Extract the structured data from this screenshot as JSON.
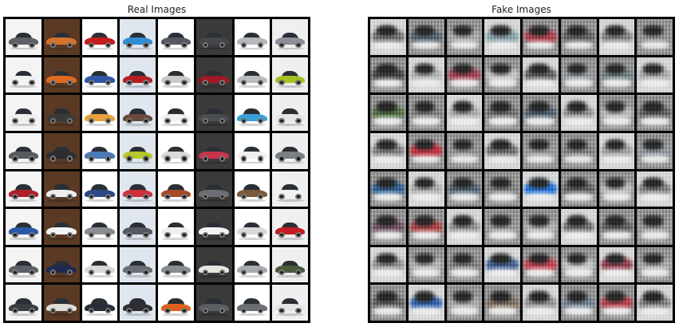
{
  "panels": [
    {
      "title": "Real Images",
      "rows": 8,
      "cols": 8,
      "background_colors": [
        "#f4f4f4",
        "#5a3a24",
        "#ffffff",
        "#dfe6ee",
        "#ffffff",
        "#3a3a3a",
        "#ffffff",
        "#efefef"
      ],
      "car_colors": [
        "#5c6066",
        "#d4742a",
        "#c41c1c",
        "#2e8fd6",
        "#55595f",
        "#44474c",
        "#b5b9bd",
        "#8c9096",
        "#f2f2f2",
        "#e06a20",
        "#2f56a8",
        "#b51f24",
        "#c9c9c9",
        "#a01825",
        "#b8bcc0",
        "#a6c21f",
        "#eeeeee",
        "#3a3a3a",
        "#e8a23a",
        "#6a4a3a",
        "#f0f0f0",
        "#4a4d52",
        "#3aa0d8",
        "#e5e5e5",
        "#565b62",
        "#2b2d31",
        "#4a78b8",
        "#b7c92a",
        "#d8d8d8",
        "#c8344a",
        "#f0f0f0",
        "#7a7f86",
        "#b01e28",
        "#eeeeee",
        "#2c4a86",
        "#d0303a",
        "#a84a28",
        "#6a6e74",
        "#7a5a3a",
        "#f2f2f2",
        "#2a58a8",
        "#f4f4f4",
        "#8a8e94",
        "#55595f",
        "#f0f0f0",
        "#f2f2f2",
        "#d8d8d8",
        "#c41c24",
        "#5c6066",
        "#1e2a52",
        "#d8d8d8",
        "#6a6e74",
        "#8a8e94",
        "#e8e4e0",
        "#a8aab0",
        "#4a5a3a",
        "#3a3d42",
        "#e0ddd8",
        "#2a2e3a",
        "#2c2e32",
        "#e0601a",
        "#5a5e64",
        "#6a6e74",
        "#e6e6e6"
      ]
    },
    {
      "title": "Fake Images",
      "rows": 8,
      "cols": 8,
      "tile_colors": [
        "#7a7a7a",
        "#5b6b78",
        "#b0b0b0",
        "#8fa8b0",
        "#b24a55",
        "#6a6a6a",
        "#8a8a8a",
        "#9a9a9a",
        "#4a4a4a",
        "#b7b7b7",
        "#a8475a",
        "#c8c8c8",
        "#6a6a6a",
        "#9aa0a6",
        "#7a8a8a",
        "#b0b0b0",
        "#5a7a4a",
        "#8a8a8a",
        "#b0b0b0",
        "#7a7a7a",
        "#5a6a7a",
        "#9a9a9a",
        "#c0c0c0",
        "#6a6a6a",
        "#8a8a8a",
        "#c23a48",
        "#9a9a9a",
        "#7a7a7a",
        "#a0a0a0",
        "#8a8a8a",
        "#a8a8a8",
        "#9aa0a6",
        "#3a6a9a",
        "#b0b0b0",
        "#5a6a7a",
        "#8a8a8a",
        "#2a7ad8",
        "#6a6a6a",
        "#c0c0c0",
        "#8a8a8a",
        "#7a5a6a",
        "#b04a4a",
        "#9a9a9a",
        "#a0a0a0",
        "#b8b8b8",
        "#7a7a7a",
        "#6a6a6a",
        "#a0a0a0",
        "#9a9a9a",
        "#b8b8b8",
        "#8a8a8a",
        "#4a6a9a",
        "#c84a58",
        "#c8c8c8",
        "#9a4a58",
        "#b0b0b0",
        "#6a6a6a",
        "#3a6ab0",
        "#b0b0b0",
        "#8a7a6a",
        "#9a9a9a",
        "#7a8a9a",
        "#b84a58",
        "#8a8a8a"
      ]
    }
  ]
}
